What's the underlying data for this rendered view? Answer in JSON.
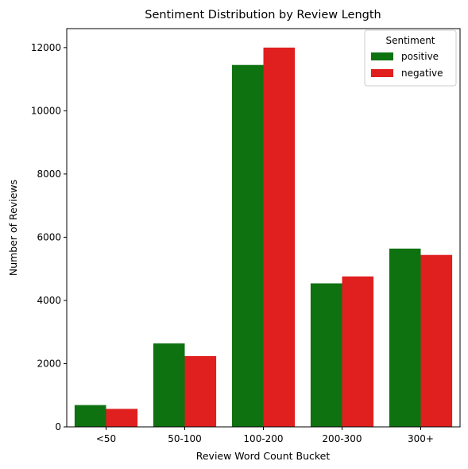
{
  "chart_data": {
    "type": "bar",
    "title": "Sentiment Distribution by Review Length",
    "xlabel": "Review Word Count Bucket",
    "ylabel": "Number of Reviews",
    "categories": [
      "<50",
      "50-100",
      "100-200",
      "200-300",
      "300+"
    ],
    "series": [
      {
        "name": "positive",
        "color": "#0e7210",
        "values": [
          690,
          2640,
          11450,
          4540,
          5640
        ]
      },
      {
        "name": "negative",
        "color": "#e01f1f",
        "values": [
          570,
          2240,
          12000,
          4760,
          5440
        ]
      }
    ],
    "ylim": [
      0,
      12600
    ],
    "yticks": [
      0,
      2000,
      4000,
      6000,
      8000,
      10000,
      12000
    ],
    "legend": {
      "title": "Sentiment",
      "placement": "top-right"
    },
    "grid": false
  }
}
